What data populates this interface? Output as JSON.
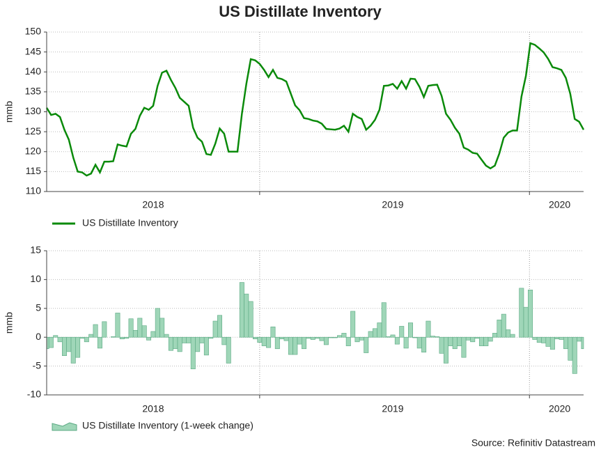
{
  "title": "US Distillate Inventory",
  "source": "Source: Refinitiv Datastream",
  "chart_data": [
    {
      "type": "line",
      "ylabel": "mmb",
      "ylim": [
        110,
        150
      ],
      "yticks": [
        110,
        115,
        120,
        125,
        130,
        135,
        140,
        145,
        150
      ],
      "grid": true,
      "xlim": [
        0,
        121
      ],
      "xticks": [
        {
          "value": 24,
          "label": "2018"
        },
        {
          "value": 78,
          "label": "2019"
        },
        {
          "value": 115.6,
          "label": "2020"
        }
      ],
      "xgrid": [
        48,
        108.8
      ],
      "series": [
        {
          "name": "US Distillate Inventory",
          "color": "#0a8a0a",
          "values": [
            131,
            129.2,
            129.5,
            128.7,
            125.5,
            123,
            118.5,
            115,
            114.8,
            114,
            114.5,
            116.7,
            114.8,
            117.5,
            117.5,
            117.6,
            121.8,
            121.5,
            121.3,
            124.5,
            125.7,
            129,
            131,
            130.5,
            131.5,
            136.5,
            139.8,
            140.3,
            138,
            136,
            133.5,
            132.5,
            131.5,
            126,
            123.5,
            122.5,
            119.4,
            119.2,
            122,
            125.8,
            124.5,
            120,
            120,
            120,
            129.5,
            137,
            143.2,
            142.9,
            142,
            140.5,
            138.7,
            140.5,
            138.5,
            138.2,
            137.6,
            134.6,
            131.6,
            130.4,
            128.4,
            128.2,
            127.8,
            127.6,
            127,
            125.7,
            125.6,
            125.5,
            125.8,
            126.5,
            125,
            129.5,
            128.7,
            128.2,
            125.5,
            126.5,
            128,
            130.5,
            136.5,
            136.6,
            137,
            135.8,
            137.7,
            135.8,
            138.3,
            138.2,
            136.3,
            133.7,
            136.5,
            136.7,
            136.8,
            134,
            129.5,
            128,
            126,
            124.5,
            121,
            120.5,
            119.7,
            119.5,
            118,
            116.5,
            115.8,
            116.5,
            119.5,
            123.5,
            124.8,
            125.3,
            125.3,
            133.8,
            139,
            147.2,
            146.8,
            145.9,
            144.9,
            143.3,
            141.2,
            140.9,
            140.5,
            138.5,
            134.5,
            128.2,
            127.5,
            125.5
          ]
        }
      ]
    },
    {
      "type": "area",
      "ylabel": "mmb",
      "ylim": [
        -10,
        15
      ],
      "yticks": [
        -10,
        -5,
        0,
        5,
        10,
        15
      ],
      "grid": true,
      "xlim": [
        0,
        121
      ],
      "xticks": [
        {
          "value": 24,
          "label": "2018"
        },
        {
          "value": 78,
          "label": "2019"
        },
        {
          "value": 115.6,
          "label": "2020"
        }
      ],
      "xgrid": [
        48,
        108.8
      ],
      "series": [
        {
          "name": "US Distillate Inventory (1-week change)",
          "color": "#9fd6b8",
          "values": [
            -2,
            -1.8,
            0.3,
            -0.8,
            -3.2,
            -2.5,
            -4.5,
            -3.5,
            -0.2,
            -0.8,
            0.5,
            2.2,
            -1.9,
            2.7,
            0,
            0.1,
            4.2,
            -0.3,
            -0.2,
            3.2,
            1.2,
            3.3,
            2,
            -0.5,
            1,
            5,
            3.3,
            0.5,
            -2.3,
            -2,
            -2.5,
            -1,
            -1,
            -5.5,
            -2.5,
            -1,
            -3.1,
            -0.2,
            2.8,
            3.8,
            -1.3,
            -4.5,
            0,
            0,
            9.5,
            7.5,
            6.2,
            -0.3,
            -0.9,
            -1.5,
            -1.8,
            1.8,
            -2,
            -0.3,
            -0.6,
            -3,
            -3,
            -1.2,
            -2,
            -0.2,
            -0.4,
            -0.2,
            -0.6,
            -1.3,
            -0.1,
            -0.1,
            0.3,
            0.7,
            -1.5,
            4.5,
            -0.8,
            -0.5,
            -2.7,
            1,
            1.5,
            2.5,
            6,
            0.1,
            0.4,
            -1.2,
            1.9,
            -1.9,
            2.5,
            -0.1,
            -1.9,
            -2.6,
            2.8,
            0.2,
            0.1,
            -2.8,
            -4.5,
            -1.5,
            -2,
            -1.5,
            -3.5,
            -0.5,
            -0.8,
            -0.2,
            -1.5,
            -1.5,
            -0.7,
            0.7,
            3,
            4,
            1.3,
            0.5,
            0,
            8.5,
            5.2,
            8.2,
            -0.4,
            -0.9,
            -1,
            -1.6,
            -2.1,
            -0.3,
            -0.4,
            -2,
            -4,
            -6.3,
            -0.7,
            -2
          ]
        }
      ]
    }
  ]
}
